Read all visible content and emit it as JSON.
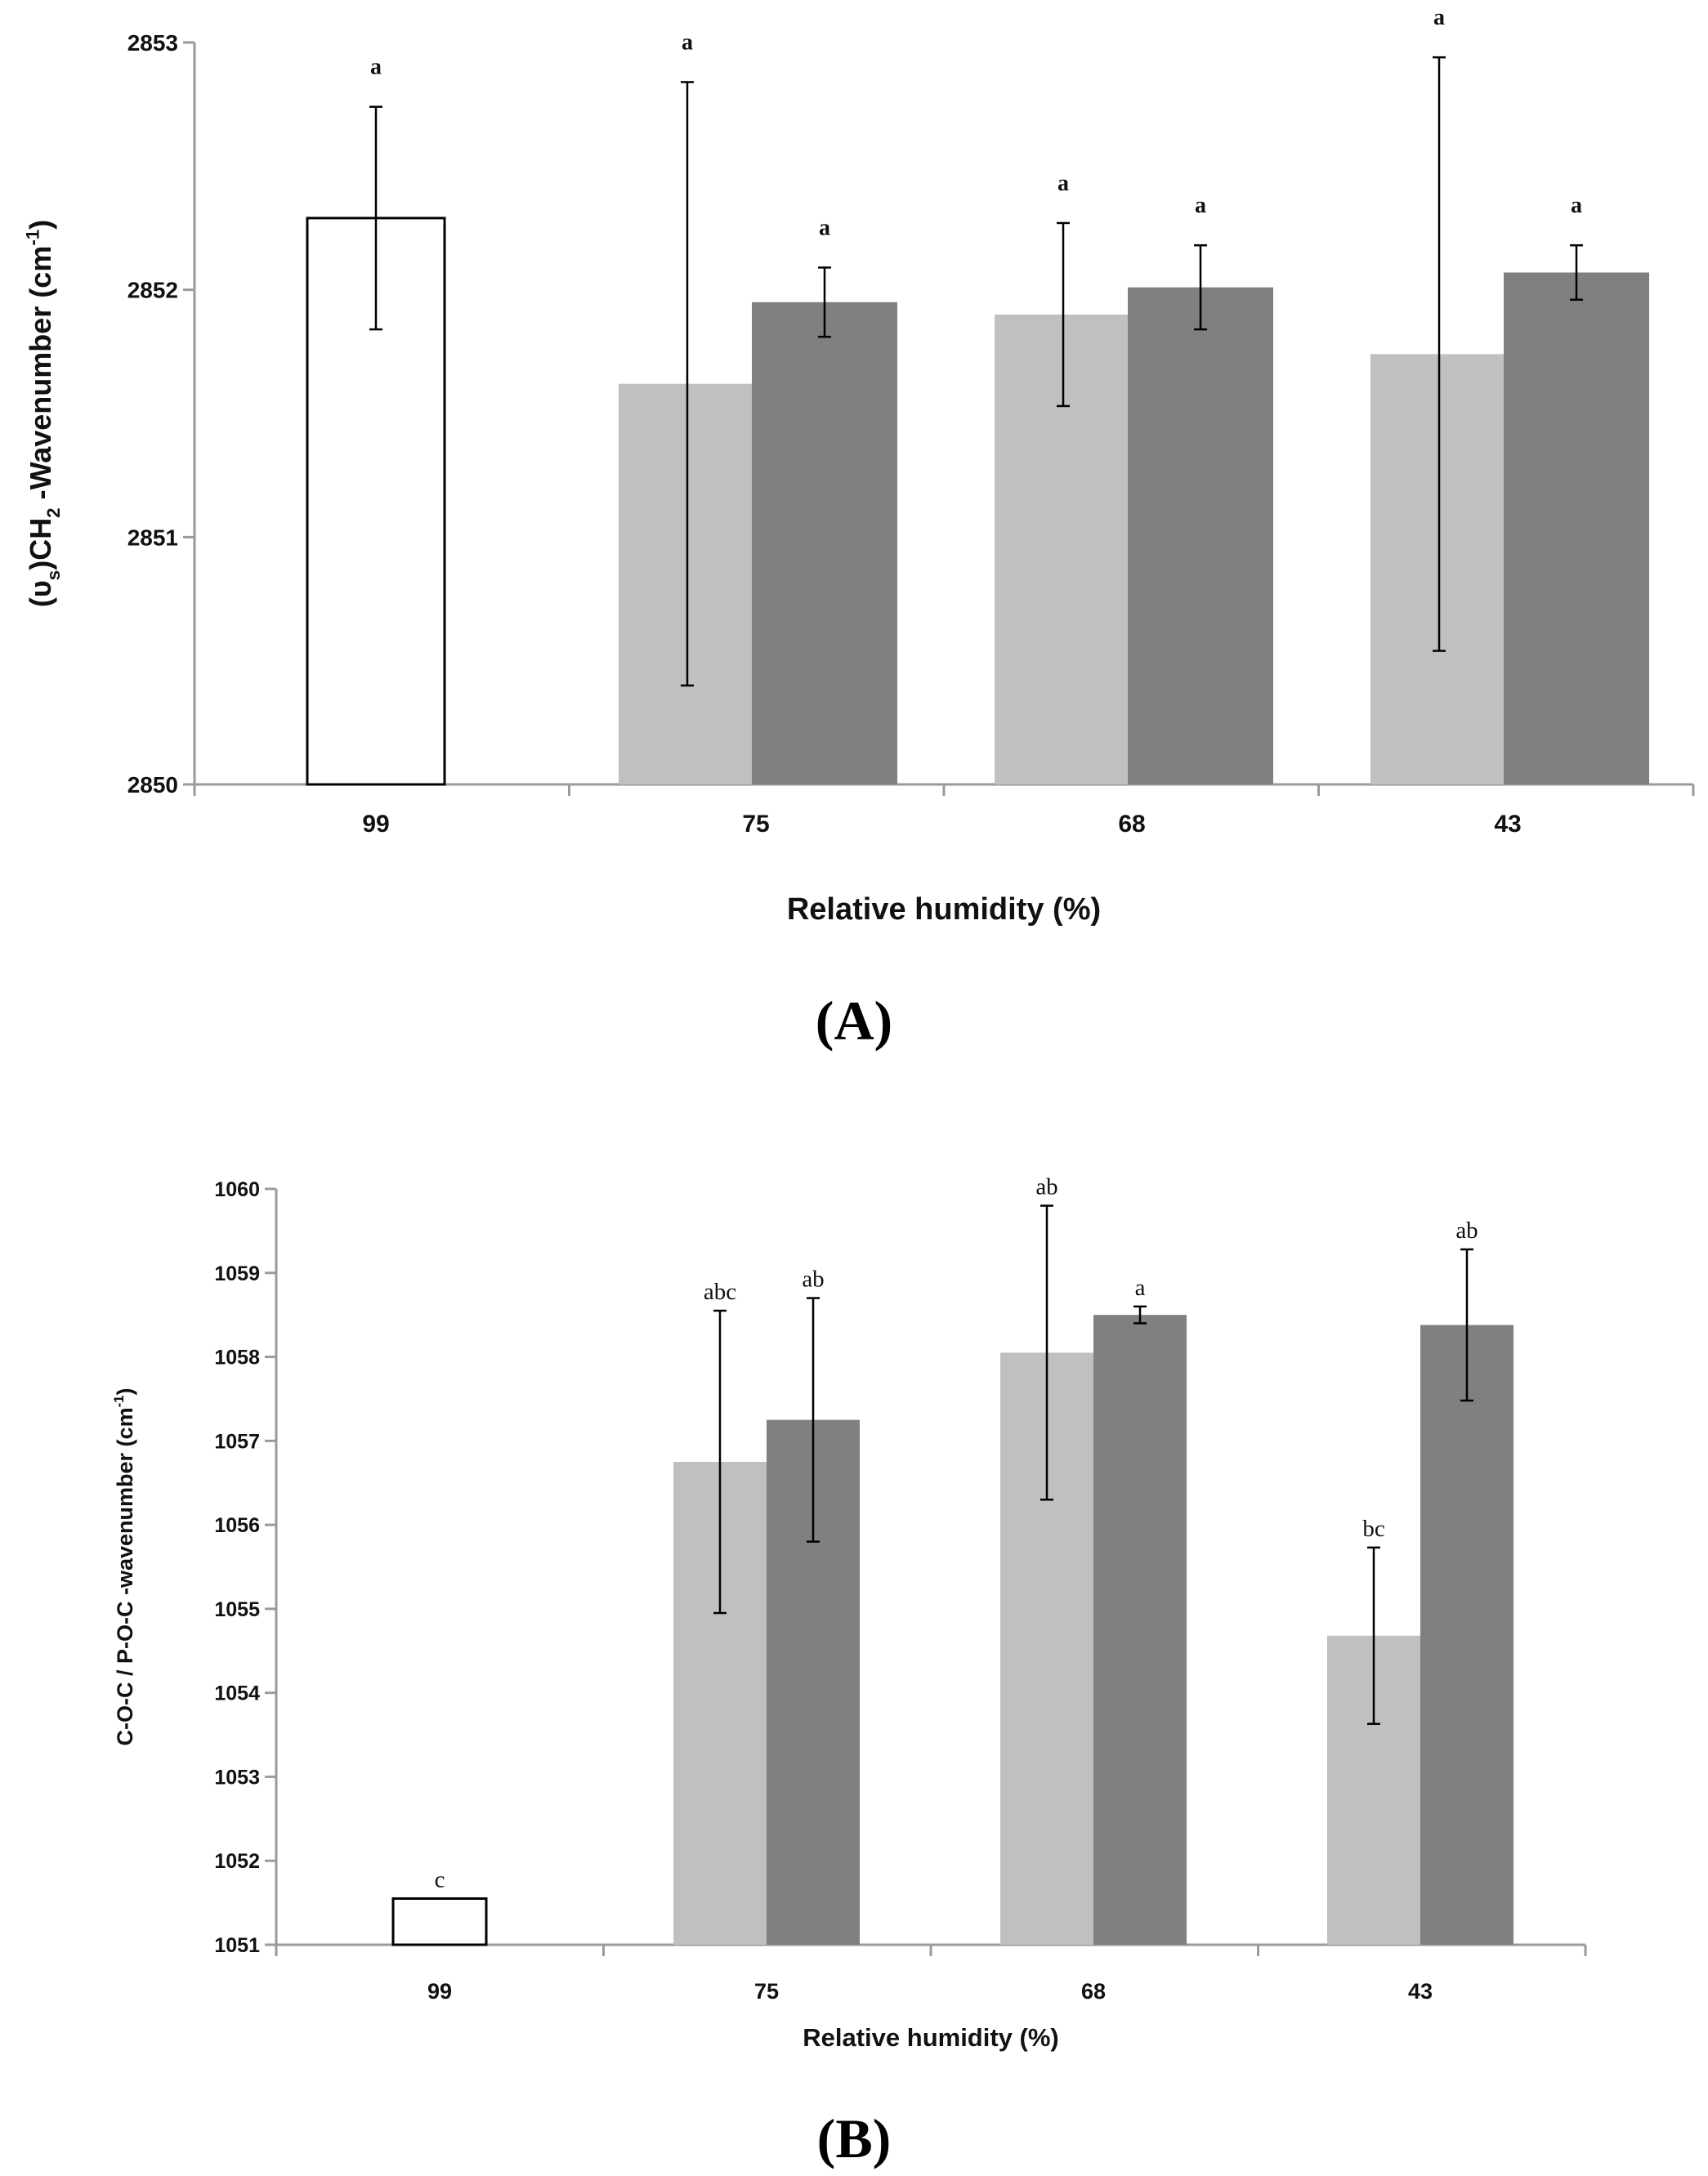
{
  "colors": {
    "light": "#c0c0c0",
    "dark": "#808080",
    "control": "#ffffff",
    "axis": "#9a9a9a",
    "stroke": "#000000"
  },
  "chart_data": [
    {
      "type": "bar",
      "panel_label": "(A)",
      "title": "",
      "xlabel": "Relative humidity  (%)",
      "ylabel_main": "(υ",
      "ylabel_sub": "s",
      "ylabel_mid": ")CH",
      "ylabel_sub2": "2",
      "ylabel_end": " -Wavenumber (cm",
      "ylabel_sup": "-1",
      "ylabel_close": ")",
      "ylim": [
        2850,
        2853
      ],
      "yticks": [
        "2850",
        "2851",
        "2852",
        "2853"
      ],
      "categories": [
        "99",
        "75",
        "68",
        "43"
      ],
      "bars": [
        {
          "category": "99",
          "series": "control",
          "value": 2852.29,
          "error": 0.45,
          "letter": "a"
        },
        {
          "category": "75",
          "series": "light",
          "value": 2851.62,
          "error": 1.22,
          "letter": "a"
        },
        {
          "category": "75",
          "series": "dark",
          "value": 2851.95,
          "error": 0.14,
          "letter": "a"
        },
        {
          "category": "68",
          "series": "light",
          "value": 2851.9,
          "error": 0.37,
          "letter": "a"
        },
        {
          "category": "68",
          "series": "dark",
          "value": 2852.01,
          "error": 0.17,
          "letter": "a"
        },
        {
          "category": "43",
          "series": "light",
          "value": 2851.74,
          "error": 1.2,
          "letter": "a"
        },
        {
          "category": "43",
          "series": "dark",
          "value": 2852.07,
          "error": 0.11,
          "letter": "a"
        }
      ]
    },
    {
      "type": "bar",
      "panel_label": "(B)",
      "title": "",
      "xlabel": "Relative humidity  (%)",
      "ylabel_main": "C-O-C / P-O-C -wavenumber (cm",
      "ylabel_sup": "-1",
      "ylabel_close": ")",
      "ylim": [
        1051,
        1060
      ],
      "yticks": [
        "1051",
        "1052",
        "1053",
        "1054",
        "1055",
        "1056",
        "1057",
        "1058",
        "1059",
        "1060"
      ],
      "categories": [
        "99",
        "75",
        "68",
        "43"
      ],
      "bars": [
        {
          "category": "99",
          "series": "control",
          "value": 1051.55,
          "error": 0,
          "letter": "c"
        },
        {
          "category": "75",
          "series": "light",
          "value": 1056.75,
          "error": 1.8,
          "letter": "abc"
        },
        {
          "category": "75",
          "series": "dark",
          "value": 1057.25,
          "error": 1.45,
          "letter": "ab"
        },
        {
          "category": "68",
          "series": "light",
          "value": 1058.05,
          "error": 1.75,
          "letter": "ab"
        },
        {
          "category": "68",
          "series": "dark",
          "value": 1058.5,
          "error": 0.1,
          "letter": "a"
        },
        {
          "category": "43",
          "series": "light",
          "value": 1054.68,
          "error": 1.05,
          "letter": "bc"
        },
        {
          "category": "43",
          "series": "dark",
          "value": 1058.38,
          "error": 0.9,
          "letter": "ab"
        }
      ]
    }
  ]
}
